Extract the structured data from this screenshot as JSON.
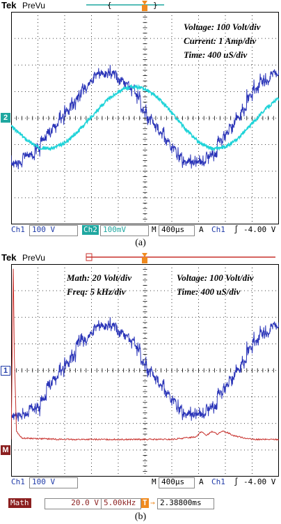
{
  "header": {
    "brand": "Tek",
    "mode": "PreVu"
  },
  "chart_data": [
    {
      "panel": "(a)",
      "type": "line",
      "annotations": [
        "Voltage: 100 Volt/div",
        "Current: 1 Amp/div",
        "Time: 400 uS/div"
      ],
      "markers": {
        "ch2": "2"
      },
      "status": {
        "ch1": "Ch1",
        "ch1_scale": "100 V",
        "ch2": "Ch2",
        "ch2_scale": "100mV",
        "m": "M",
        "timebase": "400µs",
        "a": "A",
        "trig_ch": "Ch1",
        "trig_slope": "∫",
        "trig_level": "-4.00 V"
      },
      "series": [
        {
          "channel": "Ch1",
          "color": "#2b35b8",
          "kind": "stepped-sine",
          "x": [
            0,
            0.5,
            1,
            1.5,
            2,
            2.5,
            3,
            3.5,
            4,
            4.5,
            5,
            5.5,
            6,
            6.5,
            7,
            7.5,
            8,
            8.5,
            9,
            9.5,
            10
          ],
          "y": [
            -1.6,
            -1.55,
            -1.2,
            -0.6,
            0.2,
            0.9,
            1.45,
            1.75,
            1.6,
            1.1,
            0.3,
            -0.5,
            -1.2,
            -1.65,
            -1.7,
            -1.4,
            -0.7,
            0.1,
            0.9,
            1.5,
            1.7
          ]
        },
        {
          "channel": "Ch2",
          "color": "#1fd3d8",
          "kind": "sine",
          "x": [
            0,
            0.5,
            1,
            1.5,
            2,
            2.5,
            3,
            3.5,
            4,
            4.5,
            5,
            5.5,
            6,
            6.5,
            7,
            7.5,
            8,
            8.5,
            9,
            9.5,
            10
          ],
          "y": [
            -0.3,
            -0.75,
            -1.1,
            -1.15,
            -0.95,
            -0.5,
            0.05,
            0.6,
            1.0,
            1.2,
            1.1,
            0.75,
            0.2,
            -0.4,
            -0.9,
            -1.15,
            -1.1,
            -0.75,
            -0.2,
            0.35,
            0.75
          ]
        }
      ],
      "xlim": [
        0,
        10
      ],
      "ylim": [
        -4,
        4
      ],
      "grid": true
    },
    {
      "panel": "(b)",
      "type": "line",
      "annotations": [
        "Math: 20 Volt/div",
        "Freq: 5 kHz/div",
        "Voltage: 100 Volt/div",
        "Time: 400 uS/div"
      ],
      "markers": {
        "ch1": "1",
        "math": "M"
      },
      "status": {
        "ch1": "Ch1",
        "ch1_scale": "100 V",
        "m": "M",
        "timebase": "400µs",
        "a": "A",
        "trig_ch": "Ch1",
        "trig_slope": "∫",
        "trig_level": "-4.00 V"
      },
      "math_status": {
        "label": "Math",
        "scale": "20.0 V",
        "freq": "5.00kHz",
        "position": "2.38800ms"
      },
      "series": [
        {
          "channel": "Ch1",
          "color": "#2b35b8",
          "kind": "stepped-sine",
          "x": [
            0,
            0.5,
            1,
            1.5,
            2,
            2.5,
            3,
            3.5,
            4,
            4.5,
            5,
            5.5,
            6,
            6.5,
            7,
            7.5,
            8,
            8.5,
            9,
            9.5,
            10
          ],
          "y": [
            -1.65,
            -1.6,
            -1.3,
            -0.6,
            0.2,
            0.95,
            1.5,
            1.75,
            1.6,
            1.1,
            0.3,
            -0.5,
            -1.2,
            -1.65,
            -1.7,
            -1.4,
            -0.7,
            0.1,
            0.9,
            1.5,
            1.75
          ]
        },
        {
          "channel": "Math (FFT)",
          "color": "#c8302c",
          "kind": "spectrum",
          "peak_x": 0.1,
          "peak_y": 3.8,
          "floor_y": -2.6,
          "x": [
            0,
            0.08,
            0.12,
            0.2,
            0.4,
            2,
            4,
            6,
            6.9,
            7.1,
            7.3,
            7.5,
            7.7,
            7.9,
            8.1,
            8.3,
            8.5,
            9,
            10
          ],
          "y": [
            -2.6,
            3.8,
            0.5,
            -2.3,
            -2.55,
            -2.6,
            -2.6,
            -2.6,
            -2.5,
            -2.3,
            -2.45,
            -2.3,
            -2.4,
            -2.3,
            -2.35,
            -2.45,
            -2.5,
            -2.6,
            -2.6
          ]
        }
      ],
      "xlim": [
        0,
        10
      ],
      "ylim": [
        -4,
        4
      ],
      "grid": true
    }
  ],
  "captions": [
    "(a)",
    "(b)"
  ]
}
